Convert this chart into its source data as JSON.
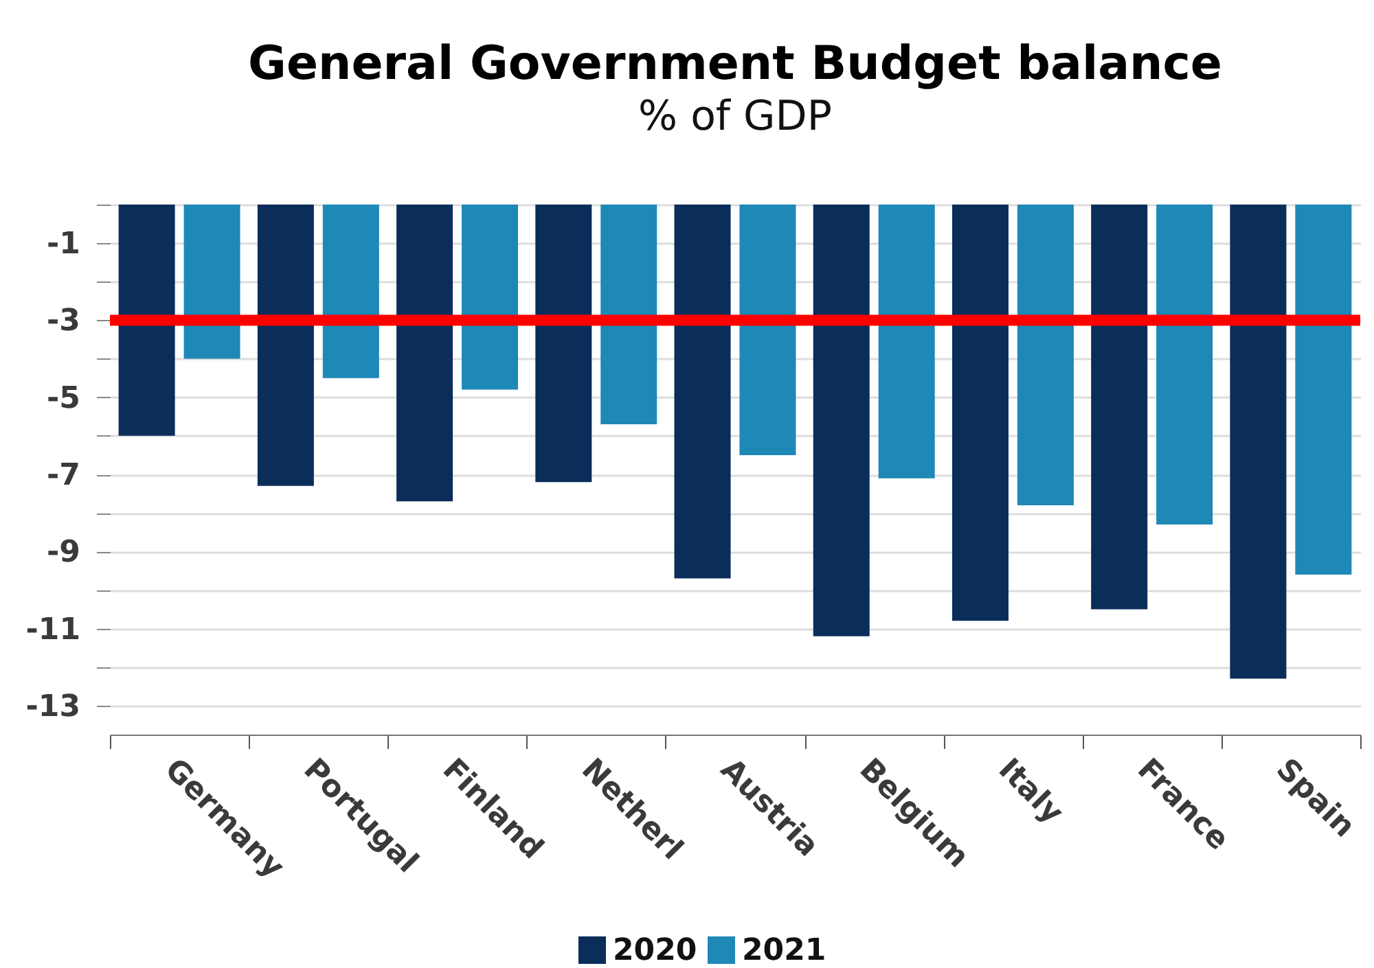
{
  "chart_data": {
    "type": "bar",
    "title": "General Government Budget balance",
    "subtitle": "% of GDP",
    "categories": [
      "Germany",
      "Portugal",
      "Finland",
      "Netherl",
      "Austria",
      "Belgium",
      "Italy",
      "France",
      "Spain"
    ],
    "series": [
      {
        "name": "2020",
        "color": "#0a2d5a",
        "values": [
          -6.0,
          -7.3,
          -7.7,
          -7.2,
          -9.7,
          -11.2,
          -10.8,
          -10.5,
          -12.3
        ]
      },
      {
        "name": "2021",
        "color": "#1e88b6",
        "values": [
          -4.0,
          -4.5,
          -4.8,
          -5.7,
          -6.5,
          -7.1,
          -7.8,
          -8.3,
          -9.6
        ]
      }
    ],
    "ylim": [
      -13.75,
      0
    ],
    "yticks": [
      {
        "value": 0,
        "label": null
      },
      -1,
      {
        "value": -2,
        "label": null
      },
      -3,
      {
        "value": -4,
        "label": null
      },
      -5,
      {
        "value": -6,
        "label": null
      },
      -7,
      {
        "value": -8,
        "label": null
      },
      -9,
      {
        "value": -10,
        "label": null
      },
      -11,
      {
        "value": -12,
        "label": null
      },
      -13
    ],
    "ref_lines": [
      {
        "axis": "y",
        "value": -3,
        "color": "#ff0000"
      }
    ],
    "grid": true,
    "legend": "bottom"
  }
}
